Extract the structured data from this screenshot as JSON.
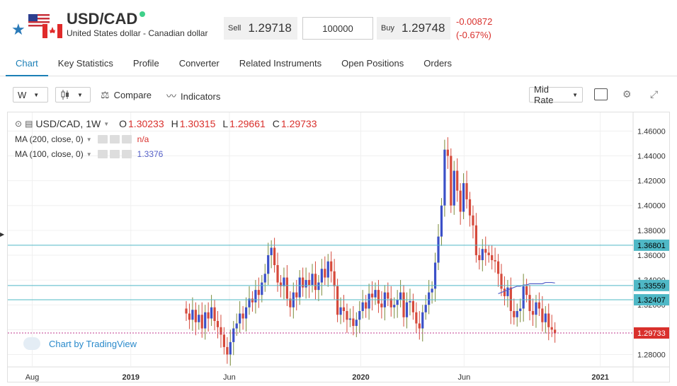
{
  "header": {
    "title": "USD/CAD",
    "subtitle": "United States dollar - Canadian dollar",
    "sell_label": "Sell",
    "sell_price": "1.29718",
    "quantity": "100000",
    "buy_label": "Buy",
    "buy_price": "1.29748",
    "change": "-0.00872",
    "change_pct": "(-0.67%)"
  },
  "tabs": [
    "Chart",
    "Key Statistics",
    "Profile",
    "Converter",
    "Related Instruments",
    "Open Positions",
    "Orders"
  ],
  "toolbar": {
    "interval": "W",
    "compare": "Compare",
    "indicators": "Indicators",
    "price_type": "Mid Rate"
  },
  "legend": {
    "symbol": "USD/CAD, 1W",
    "o_label": "O",
    "o": "1.30233",
    "h_label": "H",
    "h": "1.30315",
    "l_label": "L",
    "l": "1.29661",
    "c_label": "C",
    "c": "1.29733",
    "ma200": "MA (200, close, 0)",
    "ma200_val": "n/a",
    "ma100": "MA (100, close, 0)",
    "ma100_val": "1.3376"
  },
  "branding": "Chart by TradingView",
  "colors": {
    "up": "#3b50c8",
    "down": "#d64a3c",
    "accent": "#1b7fb6",
    "level_line": "#4fb8c6",
    "ma": "#5560c8"
  },
  "chart_data": {
    "type": "candlestick",
    "y_ticks": [
      1.28,
      1.3,
      1.32,
      1.34,
      1.36,
      1.38,
      1.4,
      1.42,
      1.44,
      1.46
    ],
    "y_tick_labels": [
      "1.28000",
      "1.30000",
      "1.32000",
      "1.34000",
      "1.36000",
      "1.38000",
      "1.40000",
      "1.42000",
      "1.44000",
      "1.46000"
    ],
    "ylim": [
      1.27,
      1.475
    ],
    "x_labels": [
      {
        "label": "Aug",
        "index": 4
      },
      {
        "label": "2019",
        "index": 25
      },
      {
        "label": "Jun",
        "index": 46
      },
      {
        "label": "2020",
        "index": 74
      },
      {
        "label": "Jun",
        "index": 96
      },
      {
        "label": "2021",
        "index": 125
      }
    ],
    "x_count": 132,
    "horizontal_levels": [
      {
        "value": 1.36801,
        "label": "1.36801"
      },
      {
        "value": 1.33559,
        "label": "1.33559"
      },
      {
        "value": 1.32407,
        "label": "1.32407"
      }
    ],
    "current_price": {
      "value": 1.29733,
      "label": "1.29733"
    },
    "close": [
      1.313,
      1.308,
      1.316,
      1.306,
      1.312,
      1.301,
      1.314,
      1.309,
      1.318,
      1.307,
      1.302,
      1.296,
      1.286,
      1.28,
      1.29,
      1.301,
      1.305,
      1.313,
      1.309,
      1.318,
      1.325,
      1.322,
      1.332,
      1.328,
      1.338,
      1.345,
      1.36,
      1.366,
      1.352,
      1.338,
      1.335,
      1.342,
      1.325,
      1.318,
      1.33,
      1.326,
      1.342,
      1.334,
      1.34,
      1.336,
      1.345,
      1.332,
      1.338,
      1.349,
      1.342,
      1.355,
      1.347,
      1.335,
      1.312,
      1.318,
      1.315,
      1.308,
      1.309,
      1.303,
      1.308,
      1.315,
      1.322,
      1.317,
      1.329,
      1.326,
      1.332,
      1.321,
      1.318,
      1.33,
      1.325,
      1.318,
      1.32,
      1.324,
      1.33,
      1.31,
      1.322,
      1.323,
      1.314,
      1.305,
      1.301,
      1.314,
      1.32,
      1.33,
      1.333,
      1.354,
      1.375,
      1.4,
      1.445,
      1.44,
      1.4,
      1.428,
      1.412,
      1.395,
      1.418,
      1.405,
      1.392,
      1.384,
      1.36,
      1.356,
      1.365,
      1.362,
      1.36,
      1.356,
      1.355,
      1.345,
      1.333,
      1.327,
      1.334,
      1.315,
      1.31,
      1.315,
      1.317,
      1.335,
      1.328,
      1.315,
      1.312,
      1.322,
      1.317,
      1.306,
      1.313,
      1.302,
      1.3,
      1.297
    ],
    "ma100": [
      null,
      null,
      null,
      null,
      null,
      null,
      null,
      null,
      null,
      null,
      null,
      null,
      null,
      null,
      null,
      null,
      null,
      null,
      null,
      null,
      null,
      null,
      null,
      null,
      null,
      null,
      null,
      null,
      null,
      null,
      null,
      null,
      null,
      null,
      null,
      null,
      null,
      null,
      null,
      null,
      null,
      null,
      null,
      null,
      null,
      null,
      null,
      null,
      null,
      null,
      null,
      null,
      null,
      null,
      null,
      null,
      null,
      null,
      null,
      null,
      null,
      null,
      null,
      null,
      null,
      null,
      null,
      null,
      null,
      null,
      null,
      null,
      null,
      null,
      null,
      null,
      null,
      null,
      null,
      null,
      null,
      null,
      null,
      null,
      null,
      null,
      null,
      null,
      null,
      null,
      null,
      null,
      null,
      null,
      null,
      null,
      null,
      null,
      null,
      1.329,
      1.33,
      1.331,
      1.332,
      1.333,
      1.334,
      1.335,
      1.335,
      1.336,
      1.336,
      1.337,
      1.337,
      1.337,
      1.337,
      1.337,
      1.338,
      1.338,
      1.338,
      1.3376
    ]
  }
}
